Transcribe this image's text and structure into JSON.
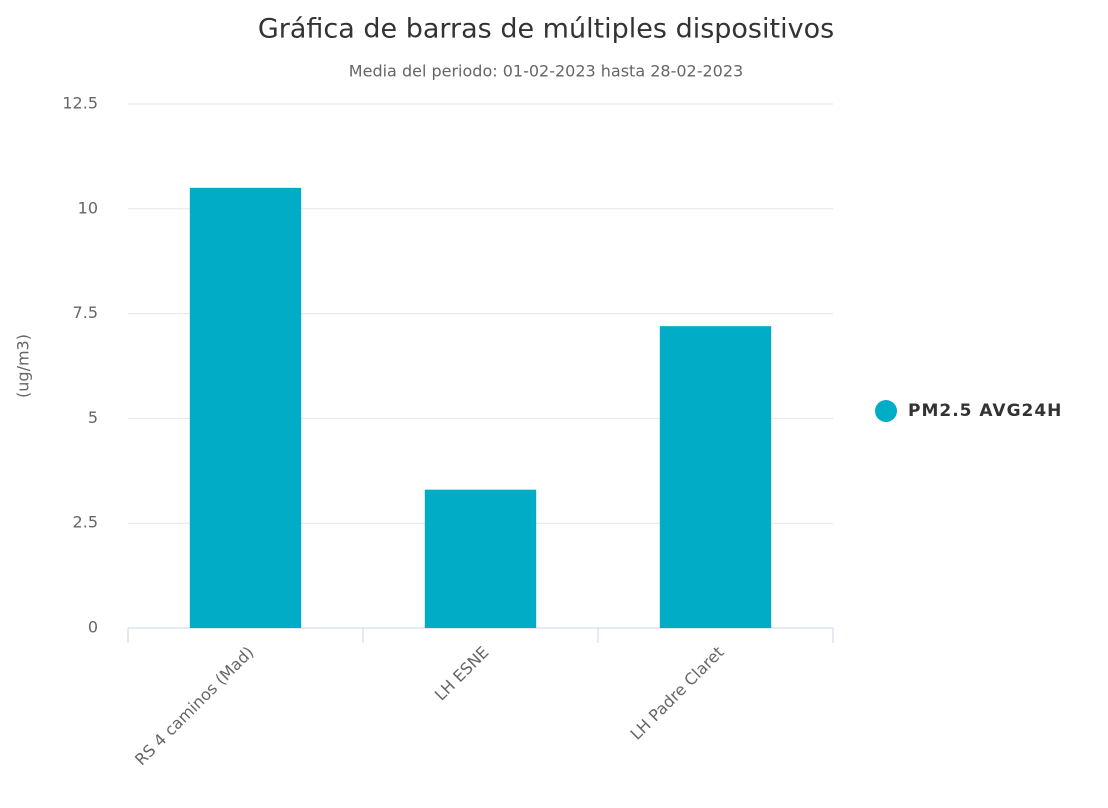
{
  "chart_data": {
    "type": "bar",
    "title": "Gráfica de barras de múltiples dispositivos",
    "subtitle": "Media del periodo: 01-02-2023 hasta 28-02-2023",
    "y_label": "(ug/m3)",
    "categories": [
      "RS 4 caminos (Mad)",
      "LH ESNE",
      "LH Padre Claret"
    ],
    "series": [
      {
        "name": "PM2.5 AVG24H",
        "color": "#00acc6",
        "values": [
          10.5,
          3.3,
          7.2
        ]
      }
    ],
    "ylim": [
      0,
      12.5
    ],
    "yticks": [
      0,
      2.5,
      5,
      7.5,
      10,
      12.5
    ],
    "grid": true,
    "legend": "right"
  }
}
